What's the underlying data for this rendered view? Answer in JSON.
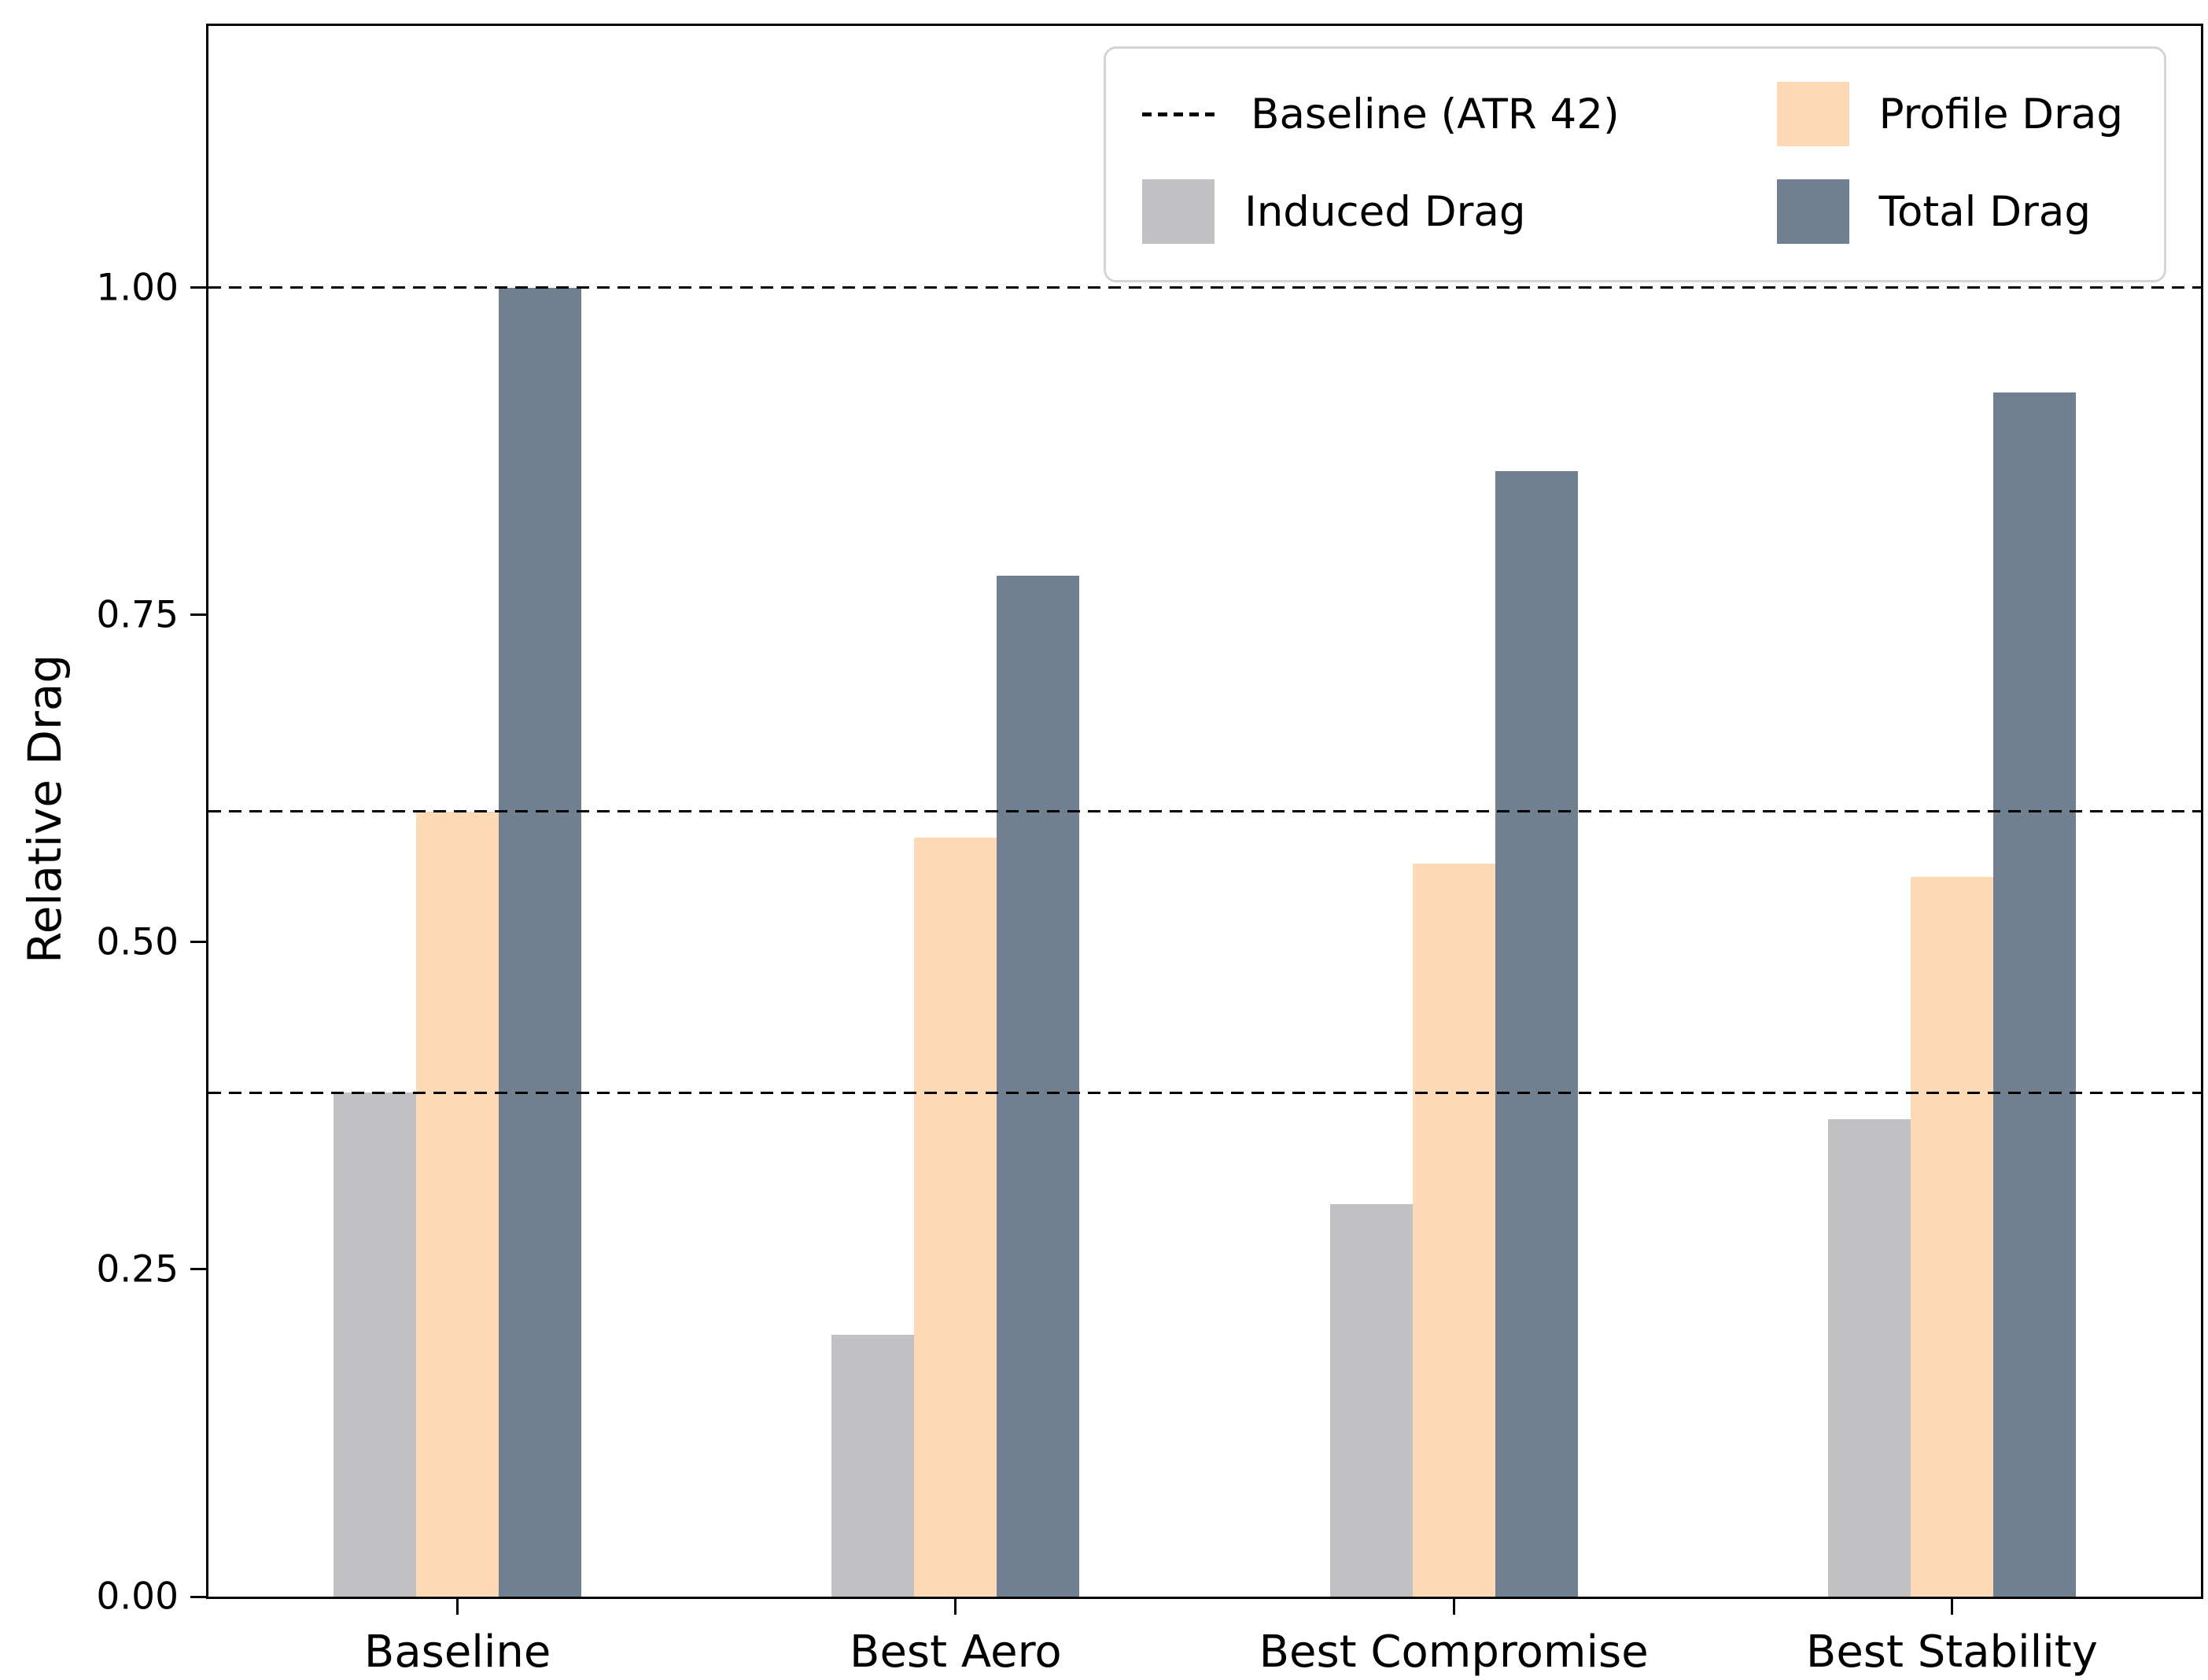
{
  "chart_data": {
    "type": "bar",
    "title": "",
    "xlabel": "",
    "ylabel": "Relative Drag",
    "ylim": [
      0,
      1.2
    ],
    "grid": false,
    "yticks": [
      {
        "value": 0.0,
        "label": "0.00"
      },
      {
        "value": 0.25,
        "label": "0.25"
      },
      {
        "value": 0.5,
        "label": "0.50"
      },
      {
        "value": 0.75,
        "label": "0.75"
      },
      {
        "value": 1.0,
        "label": "1.00"
      }
    ],
    "categories": [
      "Baseline",
      "Best Aero",
      "Best Compromise",
      "Best Stability"
    ],
    "series": [
      {
        "name": "Induced Drag",
        "color": "#c1c1c3",
        "values": [
          0.385,
          0.2,
          0.3,
          0.365
        ]
      },
      {
        "name": "Profile Drag",
        "color": "#fdd9b5",
        "values": [
          0.6,
          0.58,
          0.56,
          0.55
        ]
      },
      {
        "name": "Total Drag",
        "color": "#708090",
        "values": [
          1.0,
          0.78,
          0.86,
          0.92
        ]
      }
    ],
    "reference_lines": {
      "label": "Baseline (ATR 42)",
      "style": "dashed",
      "color": "#000000",
      "values": [
        1.0,
        0.6,
        0.385
      ]
    },
    "legend": {
      "position": "upper right",
      "columns": 2,
      "entries": [
        {
          "label": "Baseline (ATR 42)",
          "swatch": "dashed-line",
          "color": "#000000"
        },
        {
          "label": "Induced Drag",
          "swatch": "rect",
          "color": "#c1c1c3"
        },
        {
          "label": "Profile Drag",
          "swatch": "rect",
          "color": "#fdd9b5"
        },
        {
          "label": "Total Drag",
          "swatch": "rect",
          "color": "#708090"
        }
      ]
    }
  }
}
